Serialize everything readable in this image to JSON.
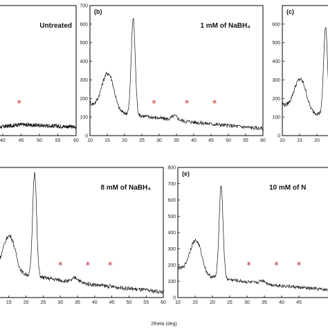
{
  "figure": {
    "xlabel": "2theta (deg)"
  },
  "colors": {
    "trace": "#111111",
    "marker": "#c1272d",
    "axis": "#000000"
  },
  "chart_data": [
    {
      "type": "line",
      "id": "a",
      "panel_label": "",
      "title": "Untreated",
      "xlim": [
        10,
        60
      ],
      "x_ticks": [
        "40",
        "45",
        "50",
        "55",
        "60"
      ],
      "ylim": [
        0,
        700
      ],
      "y_ticks": [],
      "peaks": [],
      "baseline_tail": [
        40,
        60,
        52,
        40
      ],
      "markers_x": [
        44.5
      ]
    },
    {
      "type": "line",
      "id": "b",
      "panel_label": "(b)",
      "title": "1 mM of NaBH₄",
      "xlim": [
        10,
        60
      ],
      "x_ticks": [
        "10",
        "15",
        "20",
        "25",
        "30",
        "35",
        "40",
        "45",
        "50",
        "55",
        "60"
      ],
      "ylim": [
        0,
        700
      ],
      "y_ticks": [
        "0",
        "100",
        "200",
        "300",
        "400",
        "500",
        "600",
        "700"
      ],
      "baseline_start": 180,
      "baseline_end": 38,
      "peaks": [
        {
          "x": 14.8,
          "height": 175,
          "width": 2.2
        },
        {
          "x": 16.5,
          "height": 55,
          "width": 1.5
        },
        {
          "x": 22.5,
          "height": 520,
          "width": 0.8
        },
        {
          "x": 34.5,
          "height": 22,
          "width": 1.2
        }
      ],
      "markers_x": [
        28.5,
        38.0,
        46.0
      ]
    },
    {
      "type": "line",
      "id": "c",
      "panel_label": "(c)",
      "title": "",
      "xlim": [
        10,
        60
      ],
      "x_ticks": [
        "10",
        "15",
        "20"
      ],
      "ylim": [
        0,
        700
      ],
      "y_ticks": [
        "0",
        "100",
        "200",
        "300",
        "400",
        "500",
        "600"
      ],
      "baseline_start": 175,
      "baseline_end": 40,
      "peaks": [
        {
          "x": 14.8,
          "height": 150,
          "width": 2.2
        },
        {
          "x": 16.5,
          "height": 45,
          "width": 1.5
        },
        {
          "x": 22.5,
          "height": 470,
          "width": 0.8
        }
      ],
      "markers_x": []
    },
    {
      "type": "line",
      "id": "d",
      "panel_label": ")",
      "title": "8 mM of NaBH₄",
      "xlim": [
        10,
        60
      ],
      "x_ticks": [
        "15",
        "20",
        "25",
        "30",
        "35",
        "40",
        "45",
        "50",
        "55",
        "60"
      ],
      "ylim": [
        0,
        700
      ],
      "y_ticks": [],
      "baseline_start": 190,
      "baseline_end": 30,
      "peaks": [
        {
          "x": 14.8,
          "height": 170,
          "width": 2.2
        },
        {
          "x": 16.5,
          "height": 50,
          "width": 1.5
        },
        {
          "x": 22.5,
          "height": 560,
          "width": 0.8
        },
        {
          "x": 34.5,
          "height": 25,
          "width": 1.2
        }
      ],
      "markers_x": [
        30.0,
        38.0,
        44.5
      ]
    },
    {
      "type": "line",
      "id": "e",
      "panel_label": "(e)",
      "title": "10 mM of N",
      "xlim": [
        10,
        60
      ],
      "x_ticks": [
        "10",
        "15",
        "20",
        "25",
        "30",
        "35",
        "40",
        "45"
      ],
      "ylim": [
        0,
        800
      ],
      "y_ticks": [
        "0",
        "100",
        "200",
        "300",
        "400",
        "500",
        "600",
        "700",
        "800"
      ],
      "baseline_start": 190,
      "baseline_end": 35,
      "peaks": [
        {
          "x": 14.8,
          "height": 185,
          "width": 2.2
        },
        {
          "x": 16.5,
          "height": 55,
          "width": 1.5
        },
        {
          "x": 22.5,
          "height": 570,
          "width": 0.8
        },
        {
          "x": 34.5,
          "height": 20,
          "width": 1.2
        }
      ],
      "markers_x": [
        30.5,
        38.5,
        45.0
      ]
    }
  ]
}
